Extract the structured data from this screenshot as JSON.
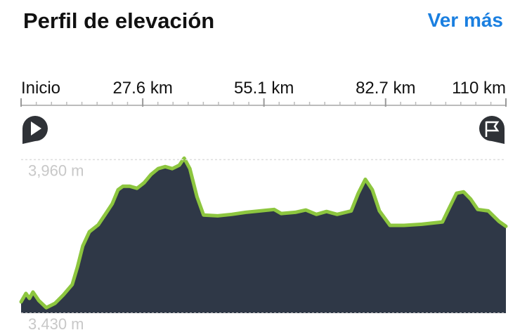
{
  "chart_data": {
    "type": "area",
    "title": "Perfil de elevación",
    "action": "Ver más",
    "x": [
      0,
      1.1,
      1.9,
      2.7,
      4.0,
      5.7,
      7.7,
      9.6,
      11.6,
      12.8,
      14.0,
      15.5,
      17.5,
      19.1,
      20.7,
      22.0,
      23.1,
      24.7,
      26.3,
      27.9,
      29.5,
      31.1,
      32.7,
      34.3,
      35.9,
      37.0,
      38.3,
      39.9,
      41.4,
      44.6,
      47.8,
      51.0,
      54.2,
      57.4,
      59.0,
      62.2,
      64.6,
      67.0,
      69.3,
      71.7,
      74.9,
      76.5,
      78.1,
      79.7,
      81.3,
      83.7,
      86.9,
      90.9,
      95.6,
      97.2,
      98.8,
      100.4,
      102.0,
      103.6,
      106.0,
      108.4,
      110.0
    ],
    "series": [
      {
        "color": "#8dc63f",
        "fill": "#2f3847",
        "values": [
          3469,
          3498,
          3481,
          3503,
          3474,
          3449,
          3464,
          3493,
          3529,
          3590,
          3662,
          3711,
          3735,
          3771,
          3808,
          3856,
          3868,
          3868,
          3861,
          3880,
          3909,
          3929,
          3936,
          3929,
          3941,
          3965,
          3929,
          3832,
          3769,
          3766,
          3771,
          3778,
          3783,
          3788,
          3774,
          3778,
          3786,
          3771,
          3781,
          3771,
          3783,
          3844,
          3892,
          3856,
          3783,
          3733,
          3733,
          3737,
          3745,
          3795,
          3844,
          3849,
          3824,
          3788,
          3783,
          3747,
          3730
        ]
      }
    ],
    "xlim": [
      0,
      110
    ],
    "xticks": [
      {
        "value": 0,
        "label": "Inicio"
      },
      {
        "value": 27.6,
        "label": "27.6 km"
      },
      {
        "value": 55.1,
        "label": "55.1 km"
      },
      {
        "value": 82.7,
        "label": "82.7 km"
      },
      {
        "value": 110,
        "label": "110 km"
      }
    ],
    "ylim": [
      3430,
      3990
    ],
    "yticks": [
      {
        "value": 3960,
        "label": "3,960 m"
      },
      {
        "value": 3430,
        "label": "3,430 m"
      }
    ],
    "grid": true
  }
}
